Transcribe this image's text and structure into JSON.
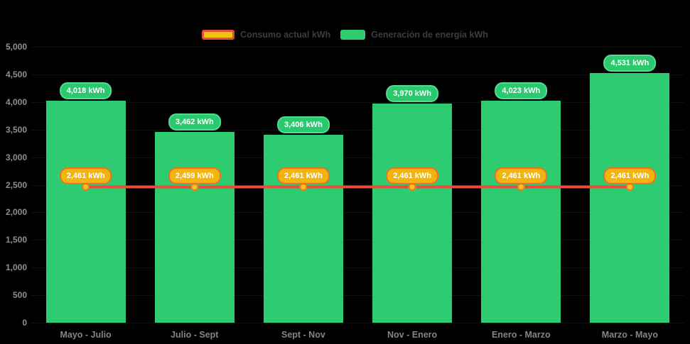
{
  "background": "#000000",
  "legend": {
    "position": "top",
    "items": [
      {
        "label": "Consumo actual kWh",
        "swatch": "line-swatch-red-yellow"
      },
      {
        "label": "Generación de energía kWh",
        "swatch": "bar-swatch-green"
      }
    ]
  },
  "chart_data": {
    "type": "bar",
    "title": "",
    "xlabel": "",
    "ylabel": "",
    "categories": [
      "Mayo - Julio",
      "Julio - Sept",
      "Sept - Nov",
      "Nov - Enero",
      "Enero - Marzo",
      "Marzo - Mayo"
    ],
    "series": [
      {
        "name": "Consumo actual kWh",
        "type": "line",
        "values": [
          2461,
          2459,
          2461,
          2461,
          2461,
          2461
        ],
        "labels": [
          "2,461 kWh",
          "2,459 kWh",
          "2,461 kWh",
          "2,461 kWh",
          "2,461 kWh",
          "2,461 kWh"
        ],
        "line_color": "#e74c3c",
        "point_fill": "#f5c518",
        "point_border": "#e67e22",
        "label_fill": "#f3b410",
        "label_border": "#e8722c"
      },
      {
        "name": "Generación de energía kWh",
        "type": "bar",
        "values": [
          4018,
          3462,
          3406,
          3970,
          4023,
          4531
        ],
        "labels": [
          "4,018 kWh",
          "3,462 kWh",
          "3,406 kWh",
          "3,970 kWh",
          "4,023 kWh",
          "4,531 kWh"
        ],
        "bar_color": "#2ecc71",
        "label_fill": "#2bc96d",
        "label_border": "#55da93"
      }
    ],
    "unit_suffix": " kWh",
    "ylim": [
      0,
      5000
    ],
    "ytick_step": 500,
    "ytick_labels": [
      "0",
      "500",
      "1,000",
      "1,500",
      "2,000",
      "2,500",
      "3,000",
      "3,500",
      "4,000",
      "4,500",
      "5,000"
    ],
    "grid": false,
    "legend_position": "top",
    "axis_text_color": "#8e8e8e"
  }
}
